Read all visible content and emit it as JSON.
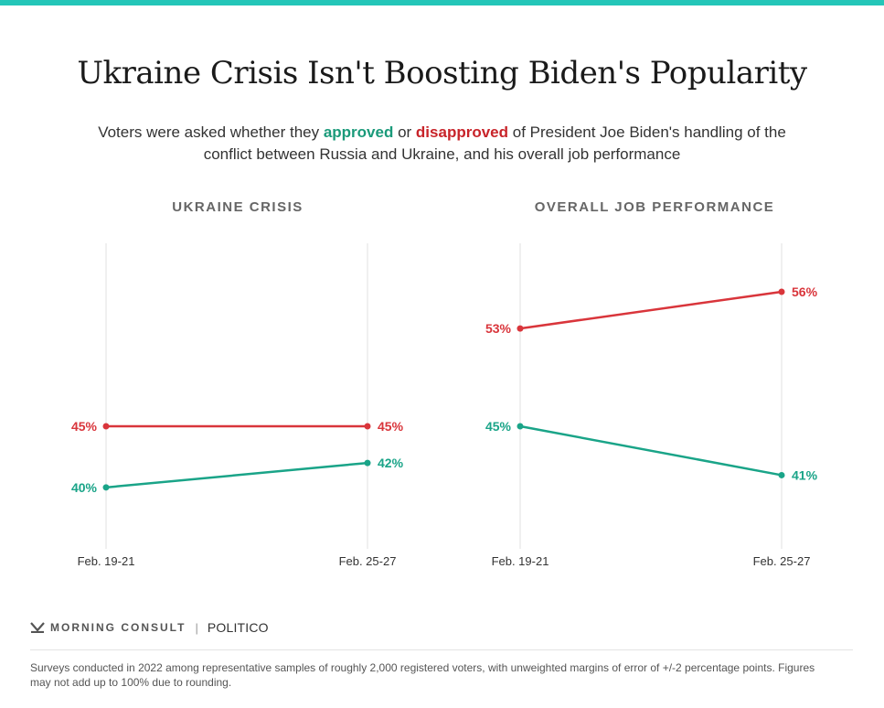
{
  "header": {
    "title": "Ukraine Crisis Isn't Boosting Biden's Popularity",
    "subtitle_before": "Voters were asked whether they ",
    "approved_word": "approved",
    "subtitle_mid": " or ",
    "disapproved_word": "disapproved",
    "subtitle_after": " of President Joe Biden's handling of the conflict between Russia and Ukraine, and his overall job performance"
  },
  "colors": {
    "approve": "#1aa488",
    "disapprove": "#d9353b",
    "topbar": "#24c6b8"
  },
  "chart_data": [
    {
      "type": "line",
      "title": "UKRAINE CRISIS",
      "categories": [
        "Feb. 19-21",
        "Feb. 25-27"
      ],
      "series": [
        {
          "key": "disapprove",
          "values": [
            45,
            45
          ],
          "labels": [
            "45%",
            "45%"
          ]
        },
        {
          "key": "approve",
          "values": [
            40,
            42
          ],
          "labels": [
            "40%",
            "42%"
          ]
        }
      ]
    },
    {
      "type": "line",
      "title": "OVERALL JOB PERFORMANCE",
      "categories": [
        "Feb. 19-21",
        "Feb. 25-27"
      ],
      "series": [
        {
          "key": "disapprove",
          "values": [
            53,
            56
          ],
          "labels": [
            "53%",
            "56%"
          ]
        },
        {
          "key": "approve",
          "values": [
            45,
            41
          ],
          "labels": [
            "45%",
            "41%"
          ]
        }
      ]
    }
  ],
  "footer": {
    "brand_morning_consult": "MORNING CONSULT",
    "brand_politico": "POLITICO",
    "note": "Surveys conducted in 2022 among representative samples of roughly 2,000 registered voters, with unweighted margins of error of +/-2 percentage points. Figures may not add up to 100% due to rounding."
  }
}
